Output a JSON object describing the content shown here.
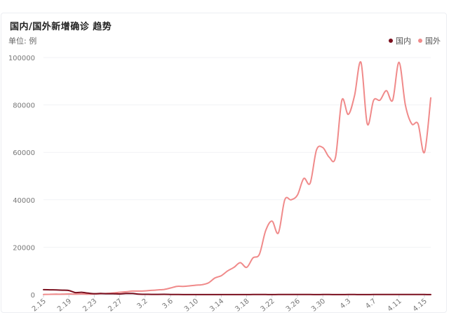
{
  "chart_data": {
    "type": "line",
    "title": "国内/国外新增确诊 趋势",
    "unit_label": "单位: 例",
    "ylim": [
      0,
      100000
    ],
    "y_ticks": [
      "0",
      "20000",
      "40000",
      "60000",
      "80000",
      "100000"
    ],
    "y_tick_values": [
      0,
      20000,
      40000,
      60000,
      80000,
      100000
    ],
    "categories": [
      "2.15",
      "2.16",
      "2.17",
      "2.18",
      "2.19",
      "2.20",
      "2.21",
      "2.22",
      "2.23",
      "2.24",
      "2.25",
      "2.26",
      "2.27",
      "2.28",
      "2.29",
      "3.1",
      "3.2",
      "3.3",
      "3.4",
      "3.5",
      "3.6",
      "3.7",
      "3.8",
      "3.9",
      "3.10",
      "3.11",
      "3.12",
      "3.13",
      "3.14",
      "3.15",
      "3.16",
      "3.17",
      "3.18",
      "3.19",
      "3.20",
      "3.21",
      "3.22",
      "3.23",
      "3.24",
      "3.25",
      "3.26",
      "3.27",
      "3.28",
      "3.29",
      "3.30",
      "3.31",
      "4.1",
      "4.2",
      "4.3",
      "4.4",
      "4.5",
      "4.6",
      "4.7",
      "4.8",
      "4.9",
      "4.10",
      "4.11",
      "4.12",
      "4.13",
      "4.14",
      "4.15",
      "4.16"
    ],
    "x_tick_labels": [
      "2.15",
      "2.19",
      "2.23",
      "2.27",
      "3.2",
      "3.6",
      "3.10",
      "3.14",
      "3.18",
      "3.22",
      "3.26",
      "3.30",
      "4.3",
      "4.7",
      "4.11",
      "4.15"
    ],
    "legend_position": "top-right",
    "grid": true,
    "series": [
      {
        "name": "国内",
        "color": "#7a0f1e",
        "values": [
          2100,
          2050,
          2000,
          1900,
          1750,
          900,
          1000,
          650,
          400,
          500,
          400,
          400,
          300,
          500,
          500,
          200,
          150,
          120,
          130,
          140,
          100,
          60,
          40,
          30,
          25,
          20,
          15,
          20,
          25,
          30,
          40,
          35,
          40,
          60,
          50,
          60,
          40,
          60,
          70,
          60,
          50,
          55,
          50,
          40,
          45,
          60,
          35,
          30,
          60,
          50,
          40,
          30,
          60,
          60,
          55,
          60,
          70,
          50,
          60,
          50,
          45,
          40
        ]
      },
      {
        "name": "国外",
        "color": "#f08a8a",
        "values": [
          100,
          150,
          200,
          200,
          300,
          200,
          300,
          250,
          300,
          400,
          500,
          700,
          1000,
          1200,
          1500,
          1500,
          1600,
          1800,
          2000,
          2200,
          2800,
          3500,
          3500,
          3700,
          4000,
          4200,
          5000,
          7000,
          8000,
          10000,
          11500,
          13500,
          11500,
          15500,
          17000,
          27000,
          31000,
          26000,
          40000,
          40000,
          42000,
          49000,
          47000,
          61000,
          62000,
          58000,
          58000,
          82000,
          76000,
          84000,
          98000,
          72000,
          82000,
          82000,
          86000,
          82000,
          98000,
          80000,
          72000,
          72000,
          60000,
          83000
        ]
      }
    ]
  }
}
